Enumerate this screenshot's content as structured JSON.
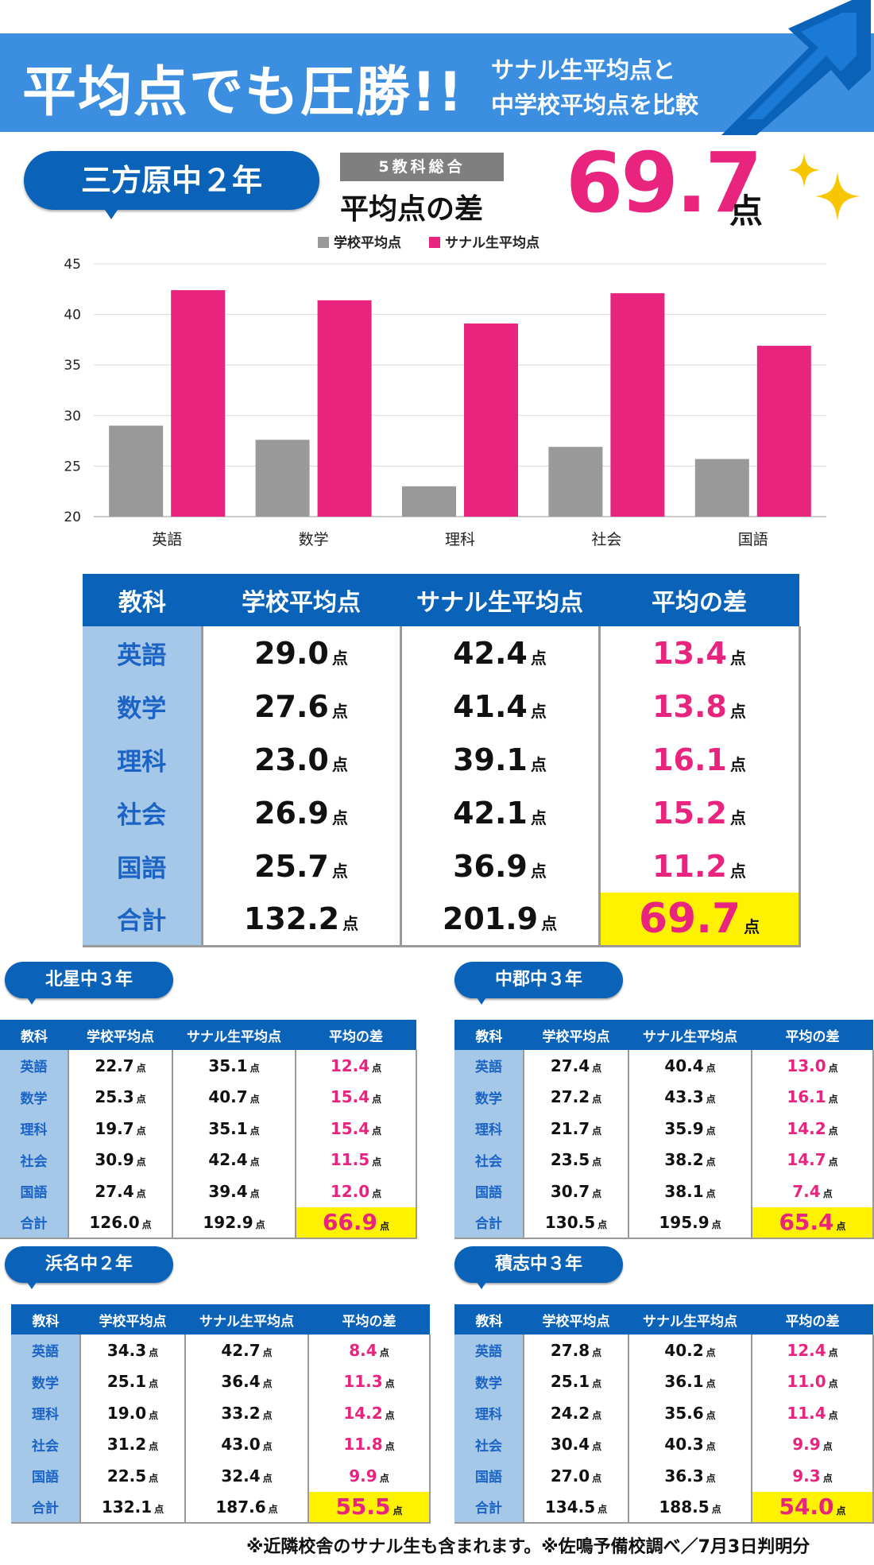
{
  "banner": {
    "title": "平均点でも圧勝!!",
    "subtitle_line1": "サナル生平均点と",
    "subtitle_line2": "中学校平均点を比較"
  },
  "main": {
    "school": "三方原中２年",
    "tag": "5教科総合",
    "diff_label": "平均点の差",
    "diff_value": "69.7",
    "diff_unit": "点"
  },
  "chart_data": {
    "type": "bar",
    "categories": [
      "英語",
      "数学",
      "理科",
      "社会",
      "国語"
    ],
    "series": [
      {
        "name": "学校平均点",
        "values": [
          29.0,
          27.6,
          23.0,
          26.9,
          25.7
        ],
        "color": "#999999"
      },
      {
        "name": "サナル生平均点",
        "values": [
          42.4,
          41.4,
          39.1,
          42.1,
          36.9
        ],
        "color": "#e8247e"
      }
    ],
    "yticks": [
      45,
      40,
      35,
      30,
      25,
      20
    ],
    "ylim": [
      20,
      45
    ],
    "grid": true,
    "legend": "top"
  },
  "main_table": {
    "headers": [
      "教科",
      "学校平均点",
      "サナル生平均点",
      "平均の差"
    ],
    "unit": "点",
    "rows": [
      [
        "英語",
        "29.0",
        "42.4",
        "13.4"
      ],
      [
        "数学",
        "27.6",
        "41.4",
        "13.8"
      ],
      [
        "理科",
        "23.0",
        "39.1",
        "16.1"
      ],
      [
        "社会",
        "26.9",
        "42.1",
        "15.2"
      ],
      [
        "国語",
        "25.7",
        "36.9",
        "11.2"
      ],
      [
        "合計",
        "132.2",
        "201.9",
        "69.7"
      ]
    ]
  },
  "schools": [
    {
      "name": "北星中３年",
      "headers": [
        "教科",
        "学校平均点",
        "サナル生平均点",
        "平均の差"
      ],
      "rows": [
        [
          "英語",
          "22.7",
          "35.1",
          "12.4"
        ],
        [
          "数学",
          "25.3",
          "40.7",
          "15.4"
        ],
        [
          "理科",
          "19.7",
          "35.1",
          "15.4"
        ],
        [
          "社会",
          "30.9",
          "42.4",
          "11.5"
        ],
        [
          "国語",
          "27.4",
          "39.4",
          "12.0"
        ],
        [
          "合計",
          "126.0",
          "192.9",
          "66.9"
        ]
      ]
    },
    {
      "name": "中郡中３年",
      "headers": [
        "教科",
        "学校平均点",
        "サナル生平均点",
        "平均の差"
      ],
      "rows": [
        [
          "英語",
          "27.4",
          "40.4",
          "13.0"
        ],
        [
          "数学",
          "27.2",
          "43.3",
          "16.1"
        ],
        [
          "理科",
          "21.7",
          "35.9",
          "14.2"
        ],
        [
          "社会",
          "23.5",
          "38.2",
          "14.7"
        ],
        [
          "国語",
          "30.7",
          "38.1",
          "7.4"
        ],
        [
          "合計",
          "130.5",
          "195.9",
          "65.4"
        ]
      ]
    },
    {
      "name": "浜名中２年",
      "headers": [
        "教科",
        "学校平均点",
        "サナル生平均点",
        "平均の差"
      ],
      "rows": [
        [
          "英語",
          "34.3",
          "42.7",
          "8.4"
        ],
        [
          "数学",
          "25.1",
          "36.4",
          "11.3"
        ],
        [
          "理科",
          "19.0",
          "33.2",
          "14.2"
        ],
        [
          "社会",
          "31.2",
          "43.0",
          "11.8"
        ],
        [
          "国語",
          "22.5",
          "32.4",
          "9.9"
        ],
        [
          "合計",
          "132.1",
          "187.6",
          "55.5"
        ]
      ]
    },
    {
      "name": "積志中３年",
      "headers": [
        "教科",
        "学校平均点",
        "サナル生平均点",
        "平均の差"
      ],
      "rows": [
        [
          "英語",
          "27.8",
          "40.2",
          "12.4"
        ],
        [
          "数学",
          "25.1",
          "36.1",
          "11.0"
        ],
        [
          "理科",
          "24.2",
          "35.6",
          "11.4"
        ],
        [
          "社会",
          "30.4",
          "40.3",
          "9.9"
        ],
        [
          "国語",
          "27.0",
          "36.3",
          "9.3"
        ],
        [
          "合計",
          "134.5",
          "188.5",
          "54.0"
        ]
      ]
    }
  ],
  "footnote": "※近隣校舎のサナル生も含まれます。※佐鳴予備校調べ／7月3日判明分"
}
